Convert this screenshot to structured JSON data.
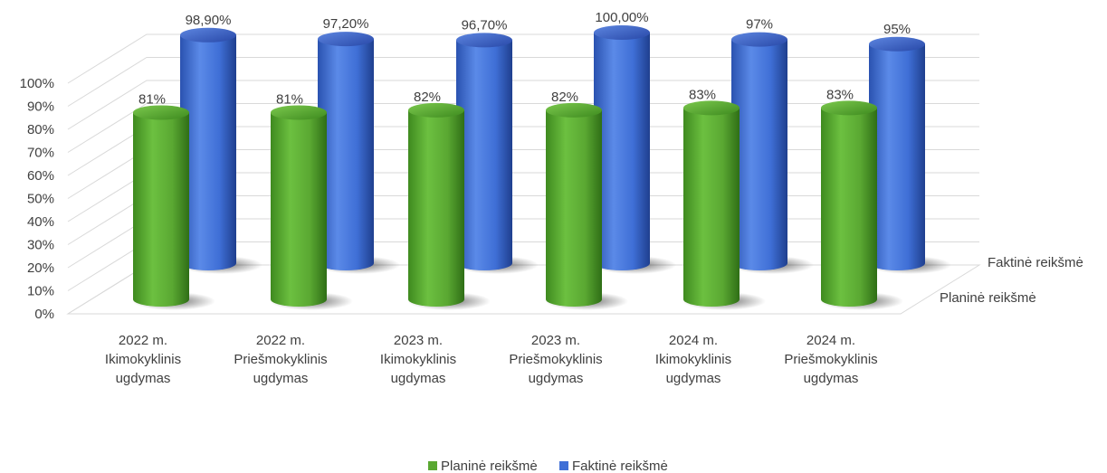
{
  "chart_data": {
    "type": "bar",
    "subtype": "3d-cylinder",
    "categories": [
      [
        "2022 m.",
        "Ikimokyklinis",
        "ugdymas"
      ],
      [
        "2022 m.",
        "Priešmokyklinis",
        "ugdymas"
      ],
      [
        "2023 m.",
        "Ikimokyklinis",
        "ugdymas"
      ],
      [
        "2023 m.",
        "Priešmokyklinis",
        "ugdymas"
      ],
      [
        "2024 m.",
        "Ikimokyklinis",
        "ugdymas"
      ],
      [
        "2024 m.",
        "Priešmokyklinis",
        "ugdymas"
      ]
    ],
    "series": [
      {
        "name": "Planinė reikšmė",
        "values": [
          81,
          81,
          82,
          82,
          83,
          83
        ],
        "labels": [
          "81%",
          "81%",
          "82%",
          "82%",
          "83%",
          "83%"
        ],
        "color": "#5aa832"
      },
      {
        "name": "Faktinė reikšmė",
        "values": [
          98.9,
          97.2,
          96.7,
          100,
          97,
          95
        ],
        "labels": [
          "98,90%",
          "97,20%",
          "96,70%",
          "100,00%",
          "97%",
          "95%"
        ],
        "color": "#3f6fd6"
      }
    ],
    "ylim": [
      0,
      100
    ],
    "yticks": [
      "0%",
      "10%",
      "20%",
      "30%",
      "40%",
      "50%",
      "60%",
      "70%",
      "80%",
      "90%",
      "100%"
    ],
    "depth_axis_labels": [
      "Planinė reikšmė",
      "Faktinė reikšmė"
    ],
    "legend": {
      "position": "bottom",
      "entries": [
        "Planinė reikšmė",
        "Faktinė reikšmė"
      ]
    },
    "grid": true
  }
}
